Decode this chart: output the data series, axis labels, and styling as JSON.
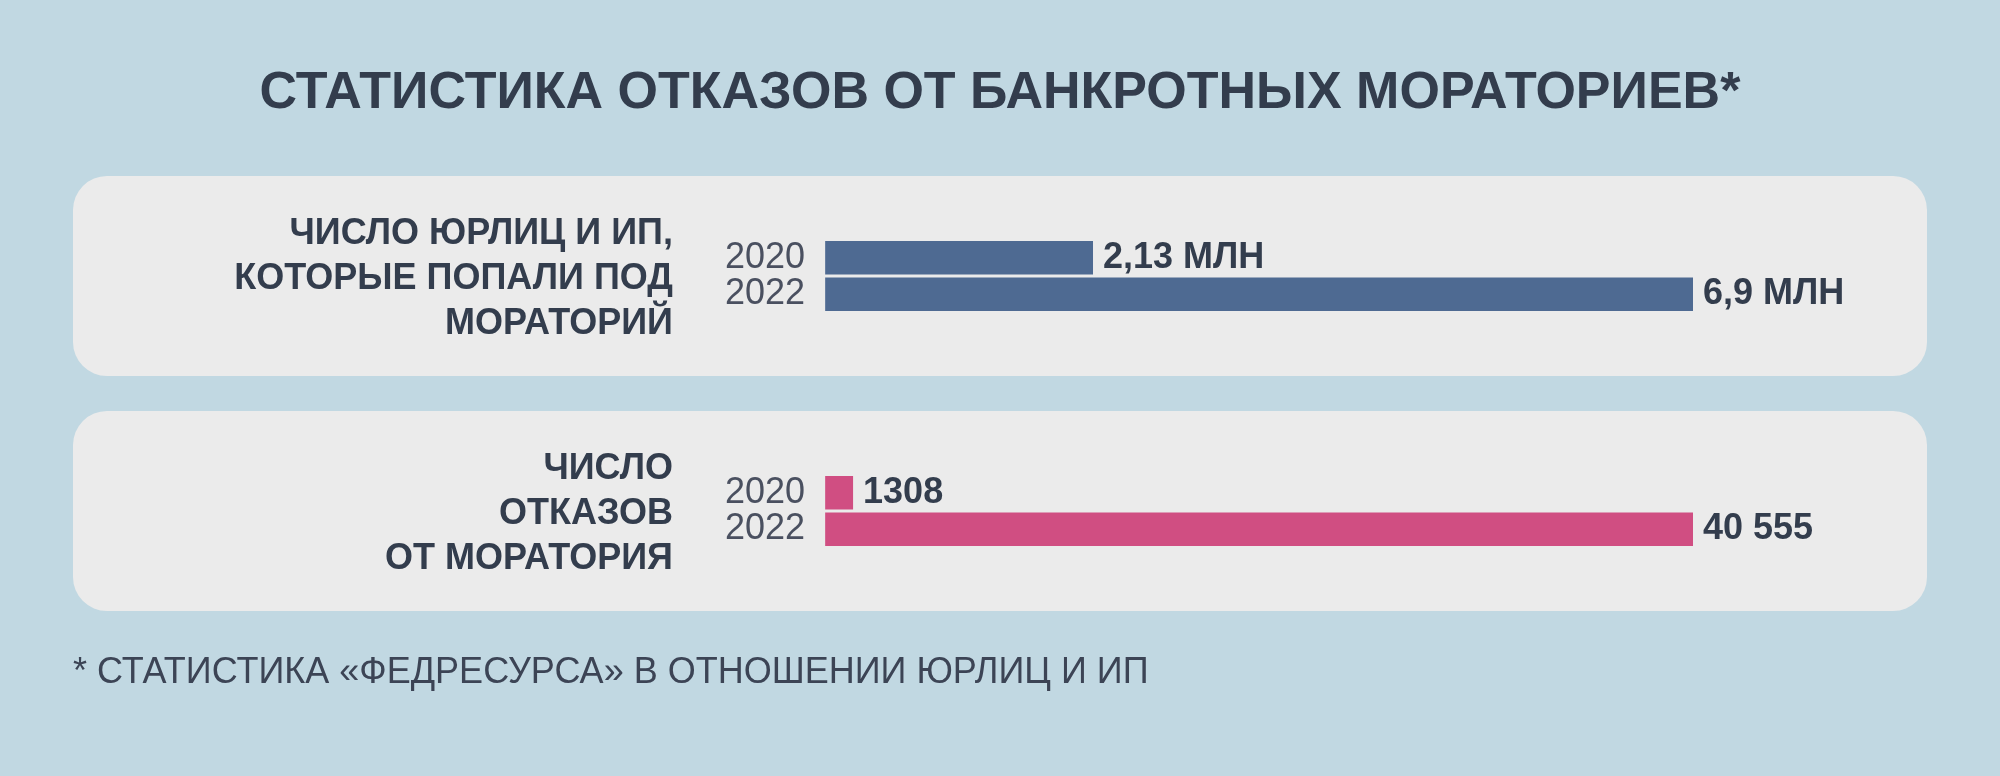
{
  "chart_data": [
    {
      "type": "bar",
      "orientation": "horizontal",
      "title": "СТАТИСТИКА ОТКАЗОВ ОТ БАНКРОТНЫХ МОРАТОРИЕВ*",
      "ylabel": "ЧИСЛО ЮРЛИЦ И ИП,\nКОТОРЫЕ ПОПАЛИ ПОД\nМОРАТОРИЙ",
      "categories": [
        "2020",
        "2022"
      ],
      "values": [
        2.13,
        6.9
      ],
      "color": "#4e6a92",
      "value_labels": [
        "2,13 МЛН",
        "6,9 МЛН"
      ]
    },
    {
      "type": "bar",
      "orientation": "horizontal",
      "ylabel": "ЧИСЛО\nОТКАЗОВ\nОТ МОРАТОРИЯ",
      "categories": [
        "2020",
        "2022"
      ],
      "values": [
        1308,
        40555
      ],
      "color": "#d04e82",
      "value_labels": [
        "1308",
        "40 555"
      ],
      "annotations": [
        "* СТАТИСТИКА «ФЕДРЕСУРСА» В ОТНОШЕНИИ ЮРЛИЦ И ИП"
      ]
    }
  ]
}
